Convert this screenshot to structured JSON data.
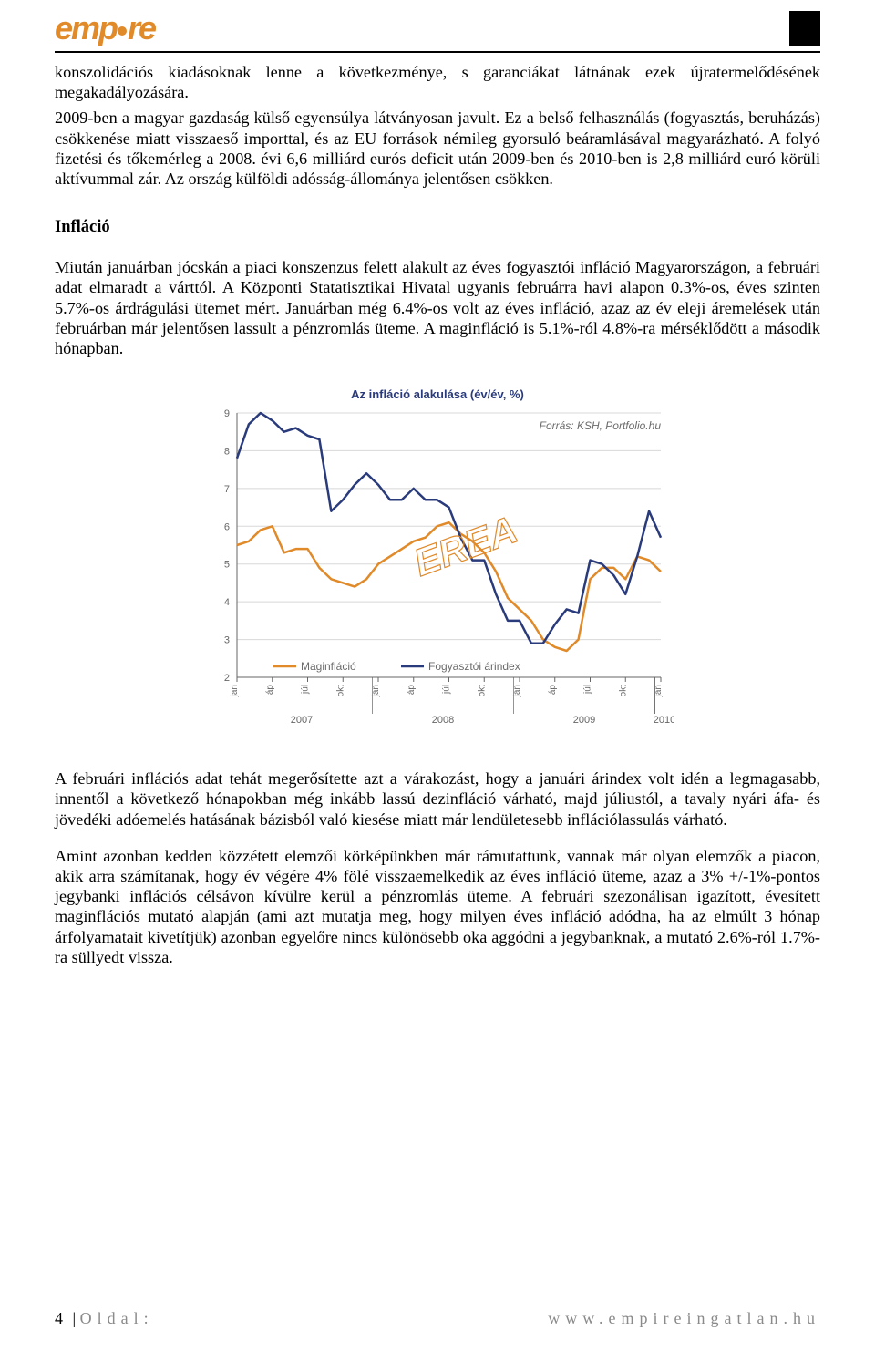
{
  "header": {
    "logo_text": "empire"
  },
  "paragraphs": {
    "p1": "konszolidációs kiadásoknak lenne a következménye, s garanciákat látnának ezek újratermelődésének megakadályozására.",
    "p2": "2009-ben a magyar gazdaság külső egyensúlya látványosan javult. Ez a belső felhasználás (fogyasztás, beruházás) csökkenése miatt visszaeső importtal, és az EU források némileg gyorsuló beáramlásával magyarázható. A folyó fizetési és tőkemérleg a 2008. évi 6,6 milliárd eurós deficit után 2009-ben és 2010-ben is 2,8 milliárd euró körüli aktívummal zár. Az ország külföldi adósság-állománya jelentősen csökken.",
    "section_title": "Infláció",
    "p3": "Miután januárban jócskán a piaci konszenzus felett alakult az éves fogyasztói infláció Magyarországon, a februári adat elmaradt a várttól. A Központi Statatisztikai Hivatal ugyanis februárra havi alapon 0.3%-os, éves szinten 5.7%-os árdrágulási ütemet mért. Januárban még 6.4%-os volt az éves infláció, azaz az év eleji áremelések után februárban már jelentősen lassult a pénzromlás üteme. A maginfláció is 5.1%-ról 4.8%-ra mérséklődött a második hónapban.",
    "p4": "A februári inflációs adat tehát megerősítette azt a várakozást, hogy a januári árindex volt idén a legmagasabb, innentől a következő hónapokban még inkább lassú dezinfláció várható, majd júliustól, a tavaly nyári áfa- és jövedéki adóemelés hatásának bázisból való kiesése miatt már lendületesebb inflációlassulás várható.",
    "p5": "Amint azonban kedden közzétett elemzői körképünkben már rámutattunk, vannak már olyan elemzők a piacon, akik arra számítanak, hogy év végére 4% fölé visszaemelkedik az éves infláció üteme, azaz a 3% +/-1%-pontos jegybanki inflációs célsávon kívülre kerül a pénzromlás üteme. A februári szezonálisan igazított, évesített maginflációs mutató alapján (ami azt mutatja meg, hogy milyen éves infláció adódna, ha az elmúlt 3 hónap árfolyamatait kivetítjük) azonban egyelőre nincs különösebb oka aggódni a jegybanknak, a mutató 2.6%-ról 1.7%-ra süllyedt vissza."
  },
  "chart": {
    "type": "line",
    "title": "Az infláció alakulása (év/év, %)",
    "source": "Forrás: KSH, Portfolio.hu",
    "watermark": "EREA",
    "title_fontsize": 13,
    "source_fontsize": 12,
    "title_color": "#2a3b7c",
    "source_color": "#6b6b6b",
    "background_color": "#ffffff",
    "grid_color": "#d8d8d8",
    "axis_color": "#666666",
    "ylim": [
      2,
      9
    ],
    "ytick_step": 1,
    "x_years": [
      "2007",
      "2008",
      "2009",
      "2010"
    ],
    "x_months_per_year": [
      "jan",
      "áp",
      "júl",
      "okt"
    ],
    "series": [
      {
        "name": "Maginfláció",
        "color": "#e08a2a",
        "line_width": 2.5,
        "values": [
          5.5,
          5.6,
          5.9,
          6.0,
          5.3,
          5.4,
          5.4,
          4.9,
          4.6,
          4.5,
          4.4,
          4.6,
          5.0,
          5.2,
          5.4,
          5.6,
          5.7,
          6.0,
          6.1,
          5.8,
          5.6,
          5.3,
          4.8,
          4.1,
          3.8,
          3.5,
          3.0,
          2.8,
          2.7,
          3.0,
          4.6,
          4.9,
          4.9,
          4.6,
          5.2,
          5.1,
          4.8
        ]
      },
      {
        "name": "Fogyasztói árindex",
        "color": "#2a3b7c",
        "line_width": 2.5,
        "values": [
          7.8,
          8.7,
          9.0,
          8.8,
          8.5,
          8.6,
          8.4,
          8.3,
          6.4,
          6.7,
          7.1,
          7.4,
          7.1,
          6.7,
          6.7,
          7.0,
          6.7,
          6.7,
          6.5,
          5.7,
          5.1,
          5.1,
          4.2,
          3.5,
          3.5,
          2.9,
          2.9,
          3.4,
          3.8,
          3.7,
          5.1,
          5.0,
          4.7,
          4.2,
          5.2,
          6.4,
          5.7
        ]
      }
    ],
    "legend": {
      "position": "inside-bottom-left",
      "label_fontsize": 12,
      "label_color": "#6b6b6b"
    },
    "watermark_style": {
      "color": "#e08a2a",
      "fontsize": 42,
      "opacity": 1,
      "rotate": -20
    }
  },
  "footer": {
    "page_label": "4",
    "page_word": "Oldal:",
    "url": "www.empireingatlan.hu"
  }
}
